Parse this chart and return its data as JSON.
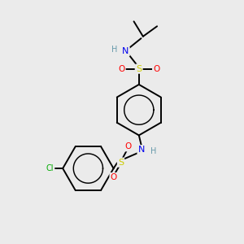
{
  "bg_color": "#ebebeb",
  "bond_color": "#000000",
  "elements": {
    "Cl": {
      "color": "#00aa00"
    },
    "S": {
      "color": "#cccc00"
    },
    "O": {
      "color": "#ff0000"
    },
    "N": {
      "color": "#0000ee"
    },
    "H": {
      "color": "#6699aa"
    },
    "C": {
      "color": "#000000"
    }
  },
  "lw": 1.4,
  "fs": 7.5
}
